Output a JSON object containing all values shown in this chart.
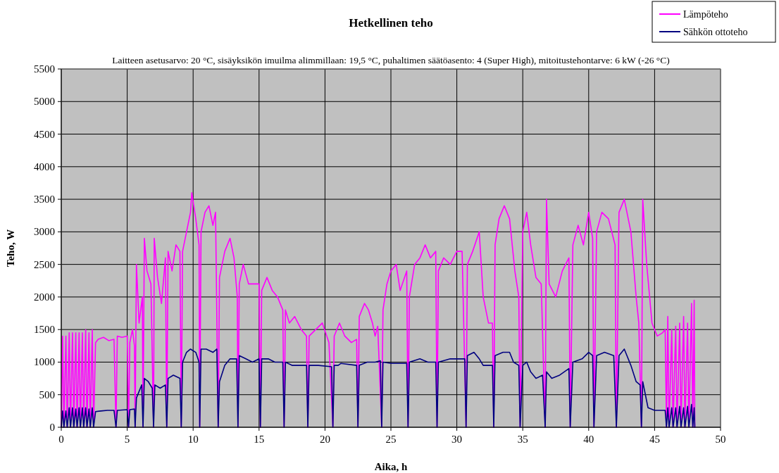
{
  "chart_data": {
    "type": "line",
    "title": "Hetkellinen teho",
    "subtitle": "Laitteen asetusarvo:  20 °C, sisäyksikön imuilma alimmillaan:  19,5 °C, puhaltimen säätöasento: 4 (Super High), mitoitustehontarve:  6 kW (-26 °C)",
    "xlabel": "Aika, h",
    "ylabel": "Teho, W",
    "xlim": [
      0,
      50
    ],
    "xticks": [
      0,
      5,
      10,
      15,
      20,
      25,
      30,
      35,
      40,
      45,
      50
    ],
    "ylim": [
      0,
      5500
    ],
    "yticks": [
      0,
      500,
      1000,
      1500,
      2000,
      2500,
      3000,
      3500,
      4000,
      4500,
      5000,
      5500
    ],
    "grid": true,
    "legend": "top right",
    "marker": "none",
    "line_style": "solid",
    "series": [
      {
        "name": "Lämpöteho",
        "color": "#ff00ff",
        "x": [
          0,
          0.1,
          0.2,
          0.35,
          0.45,
          0.6,
          0.7,
          0.85,
          0.95,
          1.1,
          1.2,
          1.35,
          1.45,
          1.6,
          1.7,
          1.85,
          1.95,
          2.1,
          2.2,
          2.35,
          2.45,
          2.6,
          2.8,
          3.2,
          3.6,
          4.0,
          4.15,
          4.25,
          4.6,
          5.0,
          5.1,
          5.2,
          5.4,
          5.55,
          5.6,
          5.7,
          5.9,
          6.15,
          6.2,
          6.3,
          6.5,
          6.8,
          7.0,
          7.05,
          7.3,
          7.6,
          7.9,
          8.0,
          8.1,
          8.4,
          8.7,
          9.0,
          9.1,
          9.2,
          9.5,
          9.8,
          9.9,
          10.2,
          10.45,
          10.5,
          10.6,
          10.9,
          11.2,
          11.5,
          11.7,
          11.9,
          12.0,
          12.4,
          12.8,
          13.1,
          13.35,
          13.4,
          13.5,
          13.8,
          14.2,
          14.6,
          15.0,
          15.1,
          15.2,
          15.6,
          16.0,
          16.4,
          16.8,
          16.9,
          17.0,
          17.3,
          17.7,
          18.2,
          18.6,
          18.7,
          18.8,
          19.3,
          19.8,
          20.3,
          20.6,
          20.7,
          21.1,
          21.5,
          22.0,
          22.4,
          22.5,
          22.6,
          23.0,
          23.3,
          23.6,
          23.8,
          24.0,
          24.3,
          24.4,
          24.7,
          25.0,
          25.4,
          25.7,
          26.2,
          26.3,
          26.4,
          26.8,
          27.2,
          27.6,
          28.0,
          28.4,
          28.5,
          28.6,
          29.0,
          29.5,
          30.0,
          30.4,
          30.7,
          30.8,
          31.2,
          31.7,
          32.0,
          32.4,
          32.7,
          32.8,
          32.9,
          33.2,
          33.6,
          34.0,
          34.4,
          34.7,
          34.8,
          35.0,
          35.3,
          35.6,
          36.0,
          36.4,
          36.7,
          36.8,
          37.0,
          37.5,
          38.0,
          38.5,
          38.6,
          38.8,
          39.2,
          39.6,
          40.0,
          40.3,
          40.4,
          40.6,
          41.0,
          41.5,
          42.0,
          42.1,
          42.3,
          42.7,
          43.2,
          43.6,
          43.8,
          44.0,
          44.1,
          44.4,
          44.8,
          45.2,
          45.6,
          45.8,
          45.9,
          46.0,
          46.1,
          46.3,
          46.4,
          46.6,
          46.7,
          46.9,
          47.0,
          47.2,
          47.3,
          47.5,
          47.6,
          47.8,
          47.9,
          48.0,
          48.05
        ],
        "values": [
          0,
          1400,
          0,
          1400,
          0,
          1450,
          0,
          1450,
          0,
          1450,
          0,
          1450,
          0,
          1450,
          0,
          1500,
          0,
          1450,
          0,
          1500,
          0,
          1300,
          1350,
          1380,
          1330,
          1350,
          0,
          1400,
          1380,
          1400,
          0,
          1300,
          1500,
          1250,
          0,
          2500,
          1600,
          2000,
          0,
          2900,
          2400,
          2200,
          0,
          2900,
          2300,
          1900,
          2600,
          0,
          2700,
          2400,
          2800,
          2700,
          0,
          2700,
          3000,
          3300,
          3600,
          3200,
          2800,
          0,
          3000,
          3300,
          3400,
          3100,
          3300,
          0,
          2300,
          2700,
          2900,
          2600,
          2000,
          0,
          2200,
          2500,
          2200,
          2200,
          2200,
          0,
          2100,
          2300,
          2100,
          2000,
          1800,
          0,
          1800,
          1600,
          1700,
          1500,
          1400,
          0,
          1400,
          1500,
          1600,
          1300,
          0,
          1400,
          1600,
          1400,
          1300,
          1350,
          0,
          1700,
          1900,
          1800,
          1600,
          1400,
          1550,
          0,
          1800,
          2200,
          2400,
          2500,
          2100,
          2400,
          0,
          2000,
          2500,
          2600,
          2800,
          2600,
          2700,
          0,
          2400,
          2600,
          2500,
          2700,
          2700,
          0,
          2500,
          2700,
          3000,
          2000,
          1600,
          1600,
          0,
          2800,
          3200,
          3400,
          3200,
          2400,
          2000,
          0,
          3000,
          3300,
          2800,
          2300,
          2200,
          0,
          3500,
          2200,
          2000,
          2400,
          2600,
          0,
          2800,
          3100,
          2800,
          3300,
          2900,
          0,
          3000,
          3300,
          3200,
          2800,
          0,
          3300,
          3500,
          3000,
          2000,
          1600,
          0,
          3500,
          2500,
          1600,
          1400,
          1450,
          1500,
          0,
          1700,
          0,
          1500,
          0,
          1550,
          0,
          1600,
          0,
          1700,
          0,
          1600,
          0,
          1900,
          0,
          1950,
          0
        ]
      },
      {
        "name": "Sähkön ottoteho",
        "color": "#000080",
        "x": [
          0,
          0.1,
          0.2,
          0.35,
          0.45,
          0.6,
          0.7,
          0.85,
          0.95,
          1.1,
          1.2,
          1.35,
          1.45,
          1.6,
          1.7,
          1.85,
          1.95,
          2.1,
          2.2,
          2.35,
          2.45,
          2.6,
          3.0,
          3.5,
          4.0,
          4.15,
          4.25,
          5.0,
          5.1,
          5.2,
          5.55,
          5.6,
          5.7,
          6.1,
          6.2,
          6.3,
          6.6,
          6.9,
          7.0,
          7.1,
          7.5,
          7.9,
          8.0,
          8.1,
          8.5,
          9.0,
          9.1,
          9.2,
          9.5,
          9.8,
          10.2,
          10.45,
          10.5,
          10.6,
          11.0,
          11.5,
          11.8,
          11.9,
          12.0,
          12.4,
          12.8,
          13.3,
          13.4,
          13.5,
          14.0,
          14.5,
          15.0,
          15.1,
          15.2,
          15.7,
          16.2,
          16.8,
          16.9,
          17.0,
          17.5,
          18.0,
          18.6,
          18.7,
          18.8,
          19.5,
          20.5,
          20.6,
          20.7,
          21.0,
          21.2,
          22.4,
          22.5,
          22.6,
          23.2,
          23.8,
          24.2,
          24.3,
          24.4,
          25.0,
          26.2,
          26.3,
          26.4,
          27.2,
          27.8,
          28.4,
          28.5,
          28.6,
          29.5,
          30.6,
          30.7,
          30.8,
          31.3,
          31.7,
          32.0,
          32.7,
          32.8,
          32.9,
          33.5,
          34.0,
          34.3,
          34.7,
          34.8,
          35.0,
          35.3,
          35.6,
          36.0,
          36.5,
          36.7,
          36.8,
          37.2,
          37.8,
          38.5,
          38.6,
          38.8,
          39.5,
          40.0,
          40.3,
          40.4,
          40.6,
          41.2,
          41.9,
          42.1,
          42.3,
          42.7,
          43.2,
          43.6,
          43.9,
          44.0,
          44.1,
          44.5,
          45.0,
          45.8,
          45.9,
          46.0,
          46.1,
          46.3,
          46.4,
          46.6,
          46.7,
          46.9,
          47.0,
          47.2,
          47.3,
          47.5,
          47.6,
          47.8,
          47.9,
          48.0,
          48.05
        ],
        "values": [
          0,
          250,
          0,
          250,
          0,
          300,
          0,
          300,
          0,
          280,
          0,
          300,
          0,
          300,
          0,
          300,
          0,
          280,
          0,
          300,
          0,
          240,
          250,
          260,
          260,
          0,
          260,
          270,
          0,
          270,
          280,
          0,
          450,
          650,
          0,
          750,
          700,
          600,
          0,
          650,
          600,
          650,
          0,
          750,
          800,
          750,
          0,
          1000,
          1150,
          1200,
          1150,
          1000,
          0,
          1200,
          1200,
          1150,
          1200,
          0,
          700,
          950,
          1050,
          1050,
          0,
          1100,
          1050,
          1000,
          1050,
          0,
          1050,
          1050,
          1000,
          1000,
          0,
          1000,
          950,
          950,
          950,
          0,
          950,
          950,
          930,
          0,
          950,
          950,
          980,
          950,
          0,
          950,
          1000,
          1000,
          1020,
          0,
          1000,
          980,
          980,
          0,
          1000,
          1050,
          1000,
          1000,
          0,
          1000,
          1050,
          1050,
          0,
          1100,
          1150,
          1050,
          950,
          950,
          0,
          1100,
          1150,
          1150,
          1000,
          950,
          0,
          950,
          1000,
          850,
          750,
          800,
          0,
          850,
          750,
          800,
          900,
          0,
          1000,
          1050,
          1150,
          1100,
          0,
          1100,
          1150,
          1100,
          0,
          1100,
          1200,
          950,
          700,
          650,
          0,
          700,
          300,
          260,
          260,
          0,
          300,
          0,
          300,
          0,
          300,
          0,
          320,
          0,
          300,
          0,
          320,
          0,
          350,
          0,
          300,
          0
        ]
      }
    ]
  }
}
